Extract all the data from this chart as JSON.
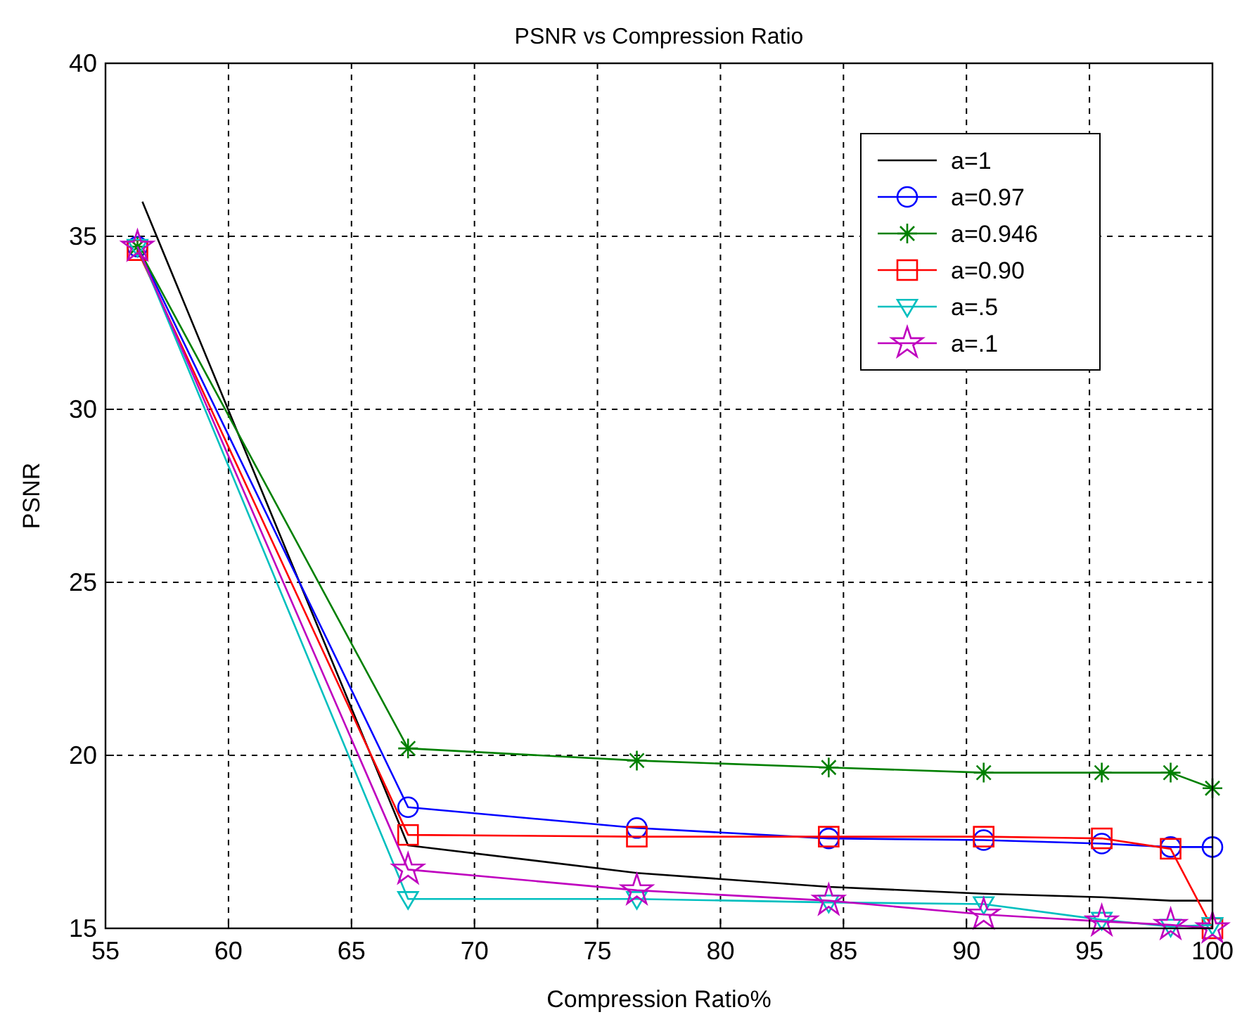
{
  "chart_data": {
    "type": "line",
    "title": "PSNR vs Compression Ratio",
    "xlabel": "Compression Ratio%",
    "ylabel": "PSNR",
    "x": [
      56.3,
      67.3,
      76.6,
      84.4,
      90.7,
      95.5,
      98.3,
      100
    ],
    "xlim": [
      55,
      100
    ],
    "xticks": [
      55,
      60,
      65,
      70,
      75,
      80,
      85,
      90,
      95,
      100
    ],
    "ylim": [
      15,
      40
    ],
    "yticks": [
      15,
      20,
      25,
      30,
      35,
      40
    ],
    "grid": true,
    "legend": "top right",
    "series": [
      {
        "name": "a=1",
        "color": "#000000",
        "marker": "none",
        "x": [
          56.5,
          67.3,
          76.6,
          84.4,
          90.7,
          95.5,
          98.3,
          100
        ],
        "values": [
          36,
          17.4,
          16.6,
          16.2,
          16.0,
          15.9,
          15.8,
          15.8
        ]
      },
      {
        "name": "a=0.97",
        "color": "#0000ff",
        "marker": "circle",
        "values": [
          34.7,
          18.5,
          17.9,
          17.6,
          17.55,
          17.45,
          17.35,
          17.35
        ]
      },
      {
        "name": "a=0.946",
        "color": "#008000",
        "marker": "cross",
        "values": [
          34.7,
          20.2,
          19.85,
          19.65,
          19.5,
          19.5,
          19.5,
          19.05
        ]
      },
      {
        "name": "a=0.90",
        "color": "#ff0000",
        "marker": "square",
        "values": [
          34.6,
          17.7,
          17.65,
          17.65,
          17.65,
          17.6,
          17.3,
          15.0
        ]
      },
      {
        "name": "a=.5",
        "color": "#00bfbf",
        "marker": "triangle",
        "values": [
          34.7,
          15.85,
          15.85,
          15.75,
          15.7,
          15.25,
          15.05,
          15.1
        ]
      },
      {
        "name": "a=.1",
        "color": "#bf00bf",
        "marker": "star",
        "values": [
          34.7,
          16.7,
          16.1,
          15.8,
          15.4,
          15.2,
          15.1,
          15.0
        ]
      }
    ]
  }
}
